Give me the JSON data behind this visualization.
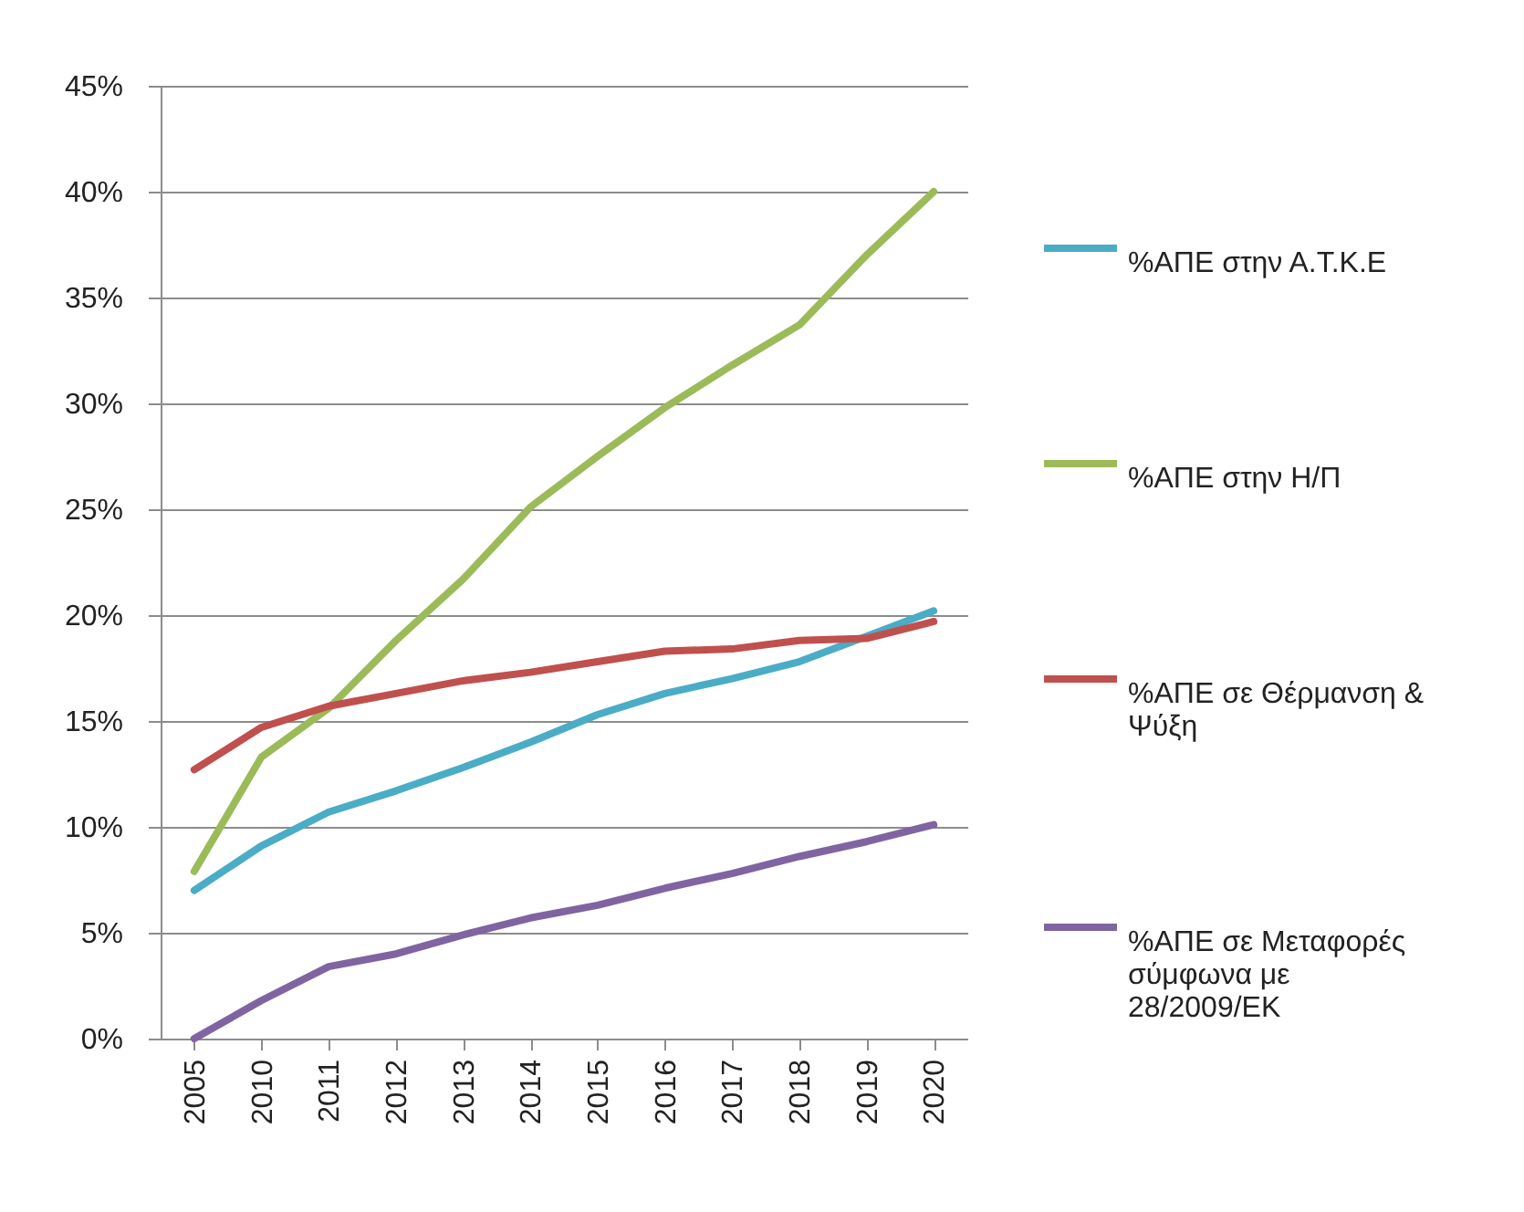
{
  "chart_data": {
    "type": "line",
    "categories": [
      "2005",
      "2010",
      "2011",
      "2012",
      "2013",
      "2014",
      "2015",
      "2016",
      "2017",
      "2018",
      "2019",
      "2020"
    ],
    "series": [
      {
        "name": "%ΑΠΕ στην Α.Τ.Κ.Ε",
        "color": "#4bacc6",
        "values": [
          7.0,
          9.1,
          10.7,
          11.7,
          12.8,
          14.0,
          15.3,
          16.3,
          17.0,
          17.8,
          19.0,
          20.2
        ]
      },
      {
        "name": "%ΑΠΕ στην Η/Π",
        "color": "#9bbb59",
        "values": [
          7.9,
          13.3,
          15.6,
          18.8,
          21.7,
          25.1,
          27.5,
          29.8,
          31.8,
          33.7,
          37.0,
          40.0
        ]
      },
      {
        "name": "%ΑΠΕ σε Θέρμανση & Ψύξη",
        "color": "#c0504d",
        "values": [
          12.7,
          14.7,
          15.7,
          16.3,
          16.9,
          17.3,
          17.8,
          18.3,
          18.4,
          18.8,
          18.9,
          19.7
        ]
      },
      {
        "name": "%ΑΠΕ σε Μεταφορές σύμφωνα με 28/2009/ΕΚ",
        "color": "#8064a2",
        "values": [
          0.0,
          1.8,
          3.4,
          4.0,
          4.9,
          5.7,
          6.3,
          7.1,
          7.8,
          8.6,
          9.3,
          10.1
        ]
      }
    ],
    "ylim": [
      0,
      45
    ],
    "yticks": [
      {
        "value": 0,
        "label": "0%"
      },
      {
        "value": 5,
        "label": "5%"
      },
      {
        "value": 10,
        "label": "10%"
      },
      {
        "value": 15,
        "label": "15%"
      },
      {
        "value": 20,
        "label": "20%"
      },
      {
        "value": 25,
        "label": "25%"
      },
      {
        "value": 30,
        "label": "30%"
      },
      {
        "value": 35,
        "label": "35%"
      },
      {
        "value": 40,
        "label": "40%"
      },
      {
        "value": 45,
        "label": "45%"
      }
    ],
    "grid": "y",
    "legend": "right",
    "marker": "none",
    "line_style": "solid"
  }
}
